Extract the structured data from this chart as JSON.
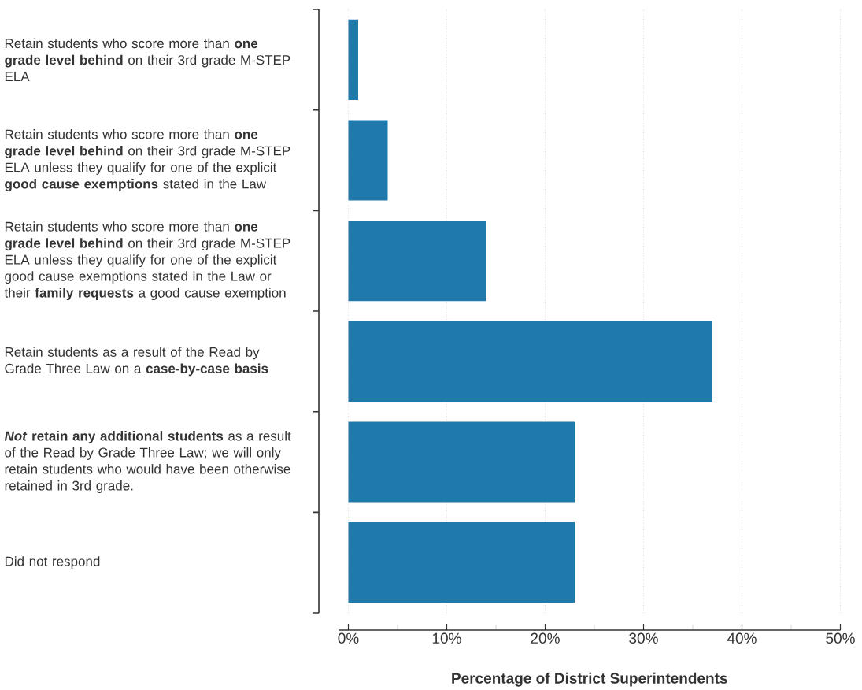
{
  "chart_data": {
    "type": "bar",
    "orientation": "horizontal",
    "categories": [
      "Retain students who score more than **one grade level behind** on their 3rd grade M-STEP ELA",
      "Retain students who score more than **one grade level behind** on their 3rd grade M-STEP ELA unless they qualify for one of the explicit **good cause exemptions** stated in the Law",
      "Retain students who score more than **one grade level behind** on their 3rd grade M-STEP ELA unless they qualify for one of the explicit good cause exemptions stated in the Law or their **family requests** a good cause exemption",
      "Retain students as a result of the Read by Grade Three Law on a **case-by-case basis**",
      "***Not* retain any additional students** as a result of the Read by Grade Three Law; we will only retain students who would have been otherwise retained in 3rd grade.",
      "Did not respond"
    ],
    "values": [
      1,
      4,
      14,
      37,
      23,
      23
    ],
    "color": "#2079ab",
    "xlabel": "Percentage of District Superintendents",
    "xlim": [
      -1,
      50
    ],
    "xticks": [
      {
        "value": 0,
        "label": "0%"
      },
      {
        "value": 10,
        "label": "10%"
      },
      {
        "value": 20,
        "label": "20%"
      },
      {
        "value": 30,
        "label": "30%"
      },
      {
        "value": 40,
        "label": "40%"
      },
      {
        "value": 50,
        "label": "50%"
      }
    ],
    "grid": "x"
  }
}
